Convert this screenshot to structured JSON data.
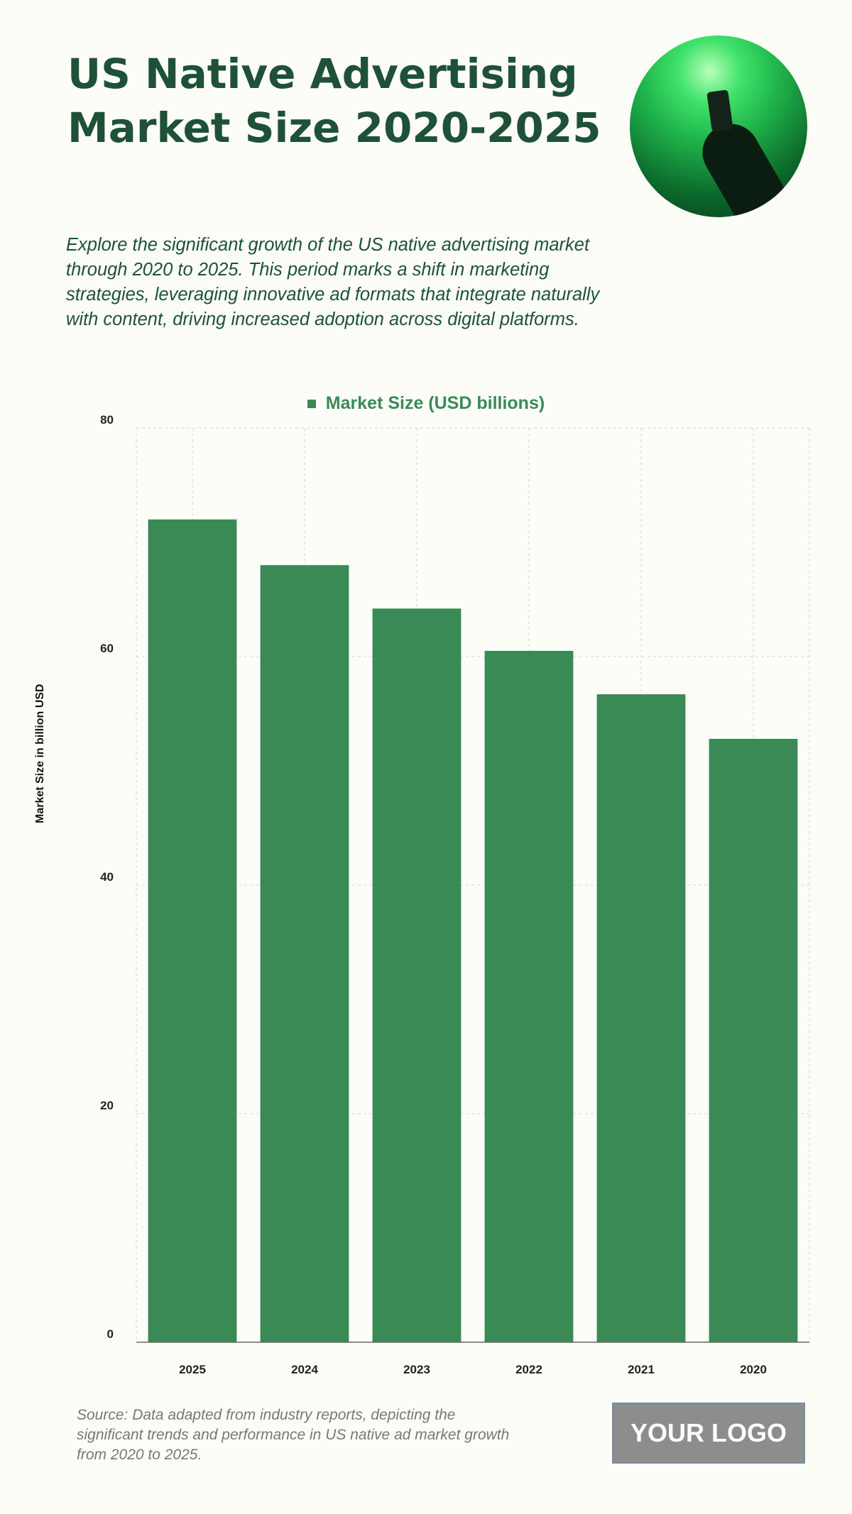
{
  "title": "US Native Advertising Market Size 2020-2025",
  "description": "Explore the significant growth of the US native advertising market through 2020 to 2025. This period marks a shift in marketing strategies, leveraging innovative ad formats that integrate naturally with content, driving increased adoption across digital platforms.",
  "source": "Source: Data adapted from industry reports, depicting the significant trends and performance in US native ad market growth from 2020 to 2025.",
  "logo": "YOUR LOGO",
  "colors": {
    "bar": "#3a8a56",
    "title": "#1e5138"
  },
  "chart_data": {
    "type": "bar",
    "title": "",
    "legend": [
      "Market Size (USD billions)"
    ],
    "legend_position": "top-center",
    "categories": [
      "2025",
      "2024",
      "2023",
      "2022",
      "2021",
      "2020"
    ],
    "series": [
      {
        "name": "Market Size (USD billions)",
        "values": [
          72,
          68,
          64.2,
          60.5,
          56.7,
          52.8
        ]
      }
    ],
    "xlabel": "",
    "ylabel": "Market Size in billion USD",
    "ylim": [
      0,
      80
    ],
    "yticks": [
      0,
      20,
      40,
      60,
      80
    ],
    "grid": true
  }
}
